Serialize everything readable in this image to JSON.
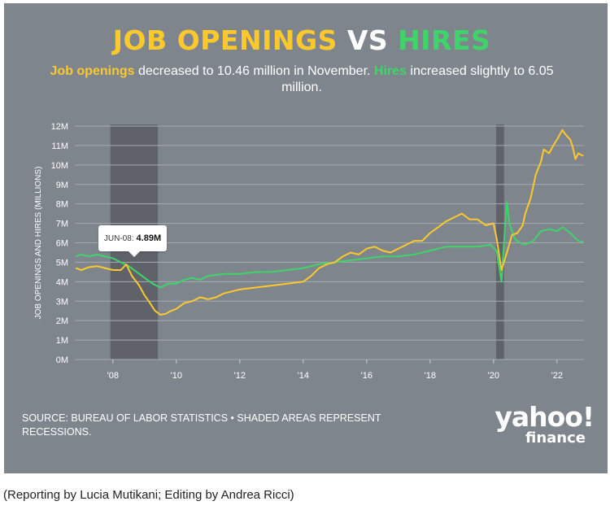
{
  "header": {
    "title_a": "JOB OPENINGS",
    "title_b": "VS",
    "title_c": "HIRES",
    "subtitle_a": "Job openings",
    "subtitle_b": " decreased to 10.46 million in November. ",
    "subtitle_c": "Hires",
    "subtitle_d": " increased slightly to 6.05 million."
  },
  "tooltip": {
    "label": "JUN-08:",
    "value": "4.89M"
  },
  "footer": {
    "source": "SOURCE: BUREAU OF LABOR STATISTICS • SHADED AREAS REPRESENT RECESSIONS.",
    "logo_top": "yahoo!",
    "logo_bottom": "finance"
  },
  "credit": "(Reporting by Lucia Mutikani; Editing by Andrea Ricci)",
  "colors": {
    "openings": "#fcc92c",
    "hires": "#3ed46a",
    "background": "#7f858d",
    "recession": "#5f6369"
  },
  "chart_data": {
    "type": "line",
    "ylabel": "JOB OPENINGS AND HIRES (MILLIONS)",
    "ylim": [
      0,
      12
    ],
    "xlim": [
      2006.8,
      2022.85
    ],
    "y_ticks": [
      "0M",
      "1M",
      "2M",
      "3M",
      "4M",
      "5M",
      "6M",
      "7M",
      "8M",
      "9M",
      "10M",
      "11M",
      "12M"
    ],
    "x_ticks": [
      {
        "value": 2008,
        "label": "'08"
      },
      {
        "value": 2010,
        "label": "'10"
      },
      {
        "value": 2012,
        "label": "'12"
      },
      {
        "value": 2014,
        "label": "'14"
      },
      {
        "value": 2016,
        "label": "'16"
      },
      {
        "value": 2018,
        "label": "'18"
      },
      {
        "value": 2020,
        "label": "'20"
      },
      {
        "value": 2022,
        "label": "'22"
      }
    ],
    "grid": true,
    "recessions": [
      [
        2007.92,
        2009.42
      ],
      [
        2020.08,
        2020.33
      ]
    ],
    "series": [
      {
        "name": "Job openings",
        "color": "#fcc92c",
        "points": [
          [
            2006.83,
            4.7
          ],
          [
            2007.0,
            4.6
          ],
          [
            2007.25,
            4.75
          ],
          [
            2007.5,
            4.8
          ],
          [
            2007.75,
            4.7
          ],
          [
            2008.0,
            4.6
          ],
          [
            2008.25,
            4.6
          ],
          [
            2008.42,
            4.89
          ],
          [
            2008.6,
            4.3
          ],
          [
            2008.83,
            3.8
          ],
          [
            2009.0,
            3.3
          ],
          [
            2009.17,
            2.9
          ],
          [
            2009.33,
            2.5
          ],
          [
            2009.5,
            2.3
          ],
          [
            2009.67,
            2.35
          ],
          [
            2009.83,
            2.5
          ],
          [
            2010.0,
            2.6
          ],
          [
            2010.25,
            2.9
          ],
          [
            2010.5,
            3.0
          ],
          [
            2010.75,
            3.2
          ],
          [
            2011.0,
            3.1
          ],
          [
            2011.25,
            3.2
          ],
          [
            2011.5,
            3.4
          ],
          [
            2011.75,
            3.5
          ],
          [
            2012.0,
            3.6
          ],
          [
            2012.5,
            3.7
          ],
          [
            2013.0,
            3.8
          ],
          [
            2013.5,
            3.9
          ],
          [
            2014.0,
            4.0
          ],
          [
            2014.25,
            4.3
          ],
          [
            2014.5,
            4.7
          ],
          [
            2014.75,
            4.9
          ],
          [
            2015.0,
            5.0
          ],
          [
            2015.25,
            5.3
          ],
          [
            2015.5,
            5.5
          ],
          [
            2015.75,
            5.4
          ],
          [
            2016.0,
            5.7
          ],
          [
            2016.25,
            5.8
          ],
          [
            2016.5,
            5.6
          ],
          [
            2016.75,
            5.5
          ],
          [
            2017.0,
            5.7
          ],
          [
            2017.25,
            5.9
          ],
          [
            2017.5,
            6.1
          ],
          [
            2017.75,
            6.1
          ],
          [
            2018.0,
            6.5
          ],
          [
            2018.25,
            6.8
          ],
          [
            2018.5,
            7.1
          ],
          [
            2018.75,
            7.3
          ],
          [
            2019.0,
            7.5
          ],
          [
            2019.25,
            7.2
          ],
          [
            2019.5,
            7.2
          ],
          [
            2019.75,
            6.9
          ],
          [
            2020.0,
            7.0
          ],
          [
            2020.1,
            6.2
          ],
          [
            2020.25,
            4.6
          ],
          [
            2020.42,
            5.5
          ],
          [
            2020.58,
            6.4
          ],
          [
            2020.75,
            6.5
          ],
          [
            2020.92,
            6.9
          ],
          [
            2021.0,
            7.5
          ],
          [
            2021.17,
            8.3
          ],
          [
            2021.33,
            9.5
          ],
          [
            2021.5,
            10.2
          ],
          [
            2021.58,
            10.8
          ],
          [
            2021.75,
            10.6
          ],
          [
            2021.92,
            11.1
          ],
          [
            2022.0,
            11.3
          ],
          [
            2022.17,
            11.8
          ],
          [
            2022.25,
            11.6
          ],
          [
            2022.42,
            11.3
          ],
          [
            2022.5,
            10.9
          ],
          [
            2022.58,
            10.3
          ],
          [
            2022.67,
            10.6
          ],
          [
            2022.83,
            10.46
          ]
        ]
      },
      {
        "name": "Hires",
        "color": "#3ed46a",
        "points": [
          [
            2006.83,
            5.3
          ],
          [
            2007.0,
            5.4
          ],
          [
            2007.25,
            5.3
          ],
          [
            2007.5,
            5.4
          ],
          [
            2007.75,
            5.3
          ],
          [
            2008.0,
            5.2
          ],
          [
            2008.25,
            5.0
          ],
          [
            2008.5,
            4.8
          ],
          [
            2008.75,
            4.5
          ],
          [
            2009.0,
            4.2
          ],
          [
            2009.25,
            3.9
          ],
          [
            2009.5,
            3.7
          ],
          [
            2009.75,
            3.9
          ],
          [
            2010.0,
            3.9
          ],
          [
            2010.25,
            4.1
          ],
          [
            2010.5,
            4.2
          ],
          [
            2010.75,
            4.1
          ],
          [
            2011.0,
            4.3
          ],
          [
            2011.5,
            4.4
          ],
          [
            2012.0,
            4.4
          ],
          [
            2012.5,
            4.5
          ],
          [
            2013.0,
            4.5
          ],
          [
            2013.5,
            4.6
          ],
          [
            2014.0,
            4.7
          ],
          [
            2014.5,
            4.9
          ],
          [
            2015.0,
            5.0
          ],
          [
            2015.5,
            5.1
          ],
          [
            2016.0,
            5.2
          ],
          [
            2016.5,
            5.3
          ],
          [
            2017.0,
            5.3
          ],
          [
            2017.5,
            5.4
          ],
          [
            2018.0,
            5.6
          ],
          [
            2018.5,
            5.8
          ],
          [
            2019.0,
            5.8
          ],
          [
            2019.5,
            5.8
          ],
          [
            2019.9,
            5.9
          ],
          [
            2020.1,
            5.6
          ],
          [
            2020.25,
            4.0
          ],
          [
            2020.35,
            6.5
          ],
          [
            2020.42,
            8.1
          ],
          [
            2020.5,
            7.0
          ],
          [
            2020.67,
            6.2
          ],
          [
            2020.83,
            6.0
          ],
          [
            2021.0,
            5.9
          ],
          [
            2021.25,
            6.1
          ],
          [
            2021.5,
            6.6
          ],
          [
            2021.75,
            6.7
          ],
          [
            2022.0,
            6.6
          ],
          [
            2022.17,
            6.8
          ],
          [
            2022.42,
            6.5
          ],
          [
            2022.67,
            6.1
          ],
          [
            2022.83,
            6.05
          ]
        ]
      }
    ]
  }
}
